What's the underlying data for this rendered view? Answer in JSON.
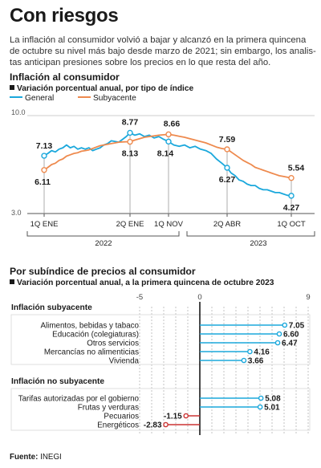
{
  "title": "Con riesgos",
  "intro_lines": [
    "La inflación al consumidor volvió a bajar y alcanzó en la primera quincena",
    "de octubre su nivel más bajo desde marzo de 2021; sin embargo, los analis-",
    "tas anticipan presiones sobre los precios en lo que resta del año."
  ],
  "section1": {
    "title": "Inflación al consumidor",
    "subtitle": "Variación porcentual anual, por tipo de índice",
    "legend": {
      "general": "General",
      "core": "Subyacente"
    }
  },
  "section2": {
    "title": "Por subíndice de precios al consumidor",
    "subtitle": "Variación porcentual anual, a la primera quincena de octubre 2023",
    "group_core": "Inflación subyacente",
    "group_noncore": "Inflación no subyacente"
  },
  "source": {
    "label": "Fuente:",
    "value": "INEGI"
  },
  "colors": {
    "general": "#1ba8dc",
    "core": "#ee8a4e",
    "positive": "#1ba8dc",
    "negative": "#cc3333",
    "grid": "#bdbdbd"
  },
  "chart_data": [
    {
      "type": "line",
      "ylim": [
        3.0,
        10.0
      ],
      "y_tick_labels": [
        "10.0",
        "3.0"
      ],
      "x_tick_labels": [
        "1Q ENE",
        "2Q ENE",
        "1Q NOV",
        "2Q ABR",
        "1Q OCT"
      ],
      "x_period_labels": [
        "2022",
        "2023"
      ],
      "series": [
        {
          "name": "General",
          "labeled_points": [
            {
              "label": "1Q ENE 2022",
              "value": 7.13
            },
            {
              "label": "2Q ENE",
              "value": 8.77
            },
            {
              "label": "1Q NOV",
              "value": 8.14
            },
            {
              "label": "2Q ABR",
              "value": 6.27
            },
            {
              "label": "1Q OCT",
              "value": 4.27
            }
          ],
          "values": [
            7.13,
            7.3,
            7.5,
            7.4,
            7.6,
            7.7,
            7.9,
            7.7,
            7.8,
            7.6,
            7.7,
            7.6,
            7.7,
            7.5,
            7.6,
            7.7,
            7.9,
            8.0,
            8.2,
            8.15,
            8.1,
            8.3,
            8.5,
            8.77,
            8.6,
            8.7,
            8.5,
            8.6,
            8.4,
            8.5,
            8.3,
            8.14,
            7.9,
            7.8,
            7.9,
            7.7,
            7.8,
            7.6,
            7.5,
            7.3,
            6.9,
            6.6,
            6.27,
            5.9,
            5.7,
            5.4,
            5.3,
            5.1,
            5.0,
            5.0,
            4.8,
            4.7,
            4.7,
            4.6,
            4.5,
            4.5,
            4.4,
            4.3,
            4.27
          ]
        },
        {
          "name": "Subyacente",
          "labeled_points": [
            {
              "label": "1Q ENE 2022",
              "value": 6.11
            },
            {
              "label": "2Q ENE",
              "value": 8.13
            },
            {
              "label": "1Q NOV",
              "value": 8.66
            },
            {
              "label": "2Q ABR",
              "value": 7.59
            },
            {
              "label": "1Q OCT",
              "value": 5.54
            }
          ],
          "values": [
            6.11,
            6.3,
            6.5,
            6.6,
            6.8,
            6.9,
            7.1,
            7.2,
            7.3,
            7.35,
            7.45,
            7.5,
            7.55,
            7.65,
            7.75,
            7.85,
            7.9,
            7.95,
            8.0,
            8.05,
            8.1,
            8.12,
            8.13,
            8.13,
            8.25,
            8.35,
            8.45,
            8.5,
            8.55,
            8.6,
            8.63,
            8.66,
            8.6,
            8.52,
            8.45,
            8.35,
            8.25,
            8.15,
            8.05,
            7.9,
            7.75,
            7.65,
            7.59,
            7.4,
            7.2,
            7.0,
            6.8,
            6.65,
            6.5,
            6.3,
            6.2,
            6.1,
            6.0,
            5.9,
            5.8,
            5.7,
            5.65,
            5.6,
            5.54
          ]
        }
      ]
    },
    {
      "type": "bar",
      "orientation": "horizontal",
      "xlim": [
        -5,
        9
      ],
      "x_tick_labels": [
        "-5",
        "0",
        "9"
      ],
      "categories": [
        "Alimentos, bebidas y tabaco",
        "Educación (colegiaturas)",
        "Otros servicios",
        "Mercancías no alimenticias",
        "Vivienda",
        "Tarifas autorizadas por el gobierno",
        "Frutas y verduras",
        "Pecuarios",
        "Energéticos"
      ],
      "values": [
        7.05,
        6.6,
        6.47,
        4.16,
        3.66,
        5.08,
        5.01,
        -1.15,
        -2.83
      ],
      "value_labels": [
        "7.05",
        "6.60",
        "6.47",
        "4.16",
        "3.66",
        "5.08",
        "5.01",
        "-1.15",
        "-2.83"
      ],
      "groups": [
        {
          "name": "Inflación subyacente",
          "categories": [
            "Alimentos, bebidas y tabaco",
            "Educación (colegiaturas)",
            "Otros servicios",
            "Mercancías no alimenticias",
            "Vivienda"
          ]
        },
        {
          "name": "Inflación no subyacente",
          "categories": [
            "Tarifas autorizadas por el gobierno",
            "Frutas y verduras",
            "Pecuarios",
            "Energéticos"
          ]
        }
      ]
    }
  ]
}
